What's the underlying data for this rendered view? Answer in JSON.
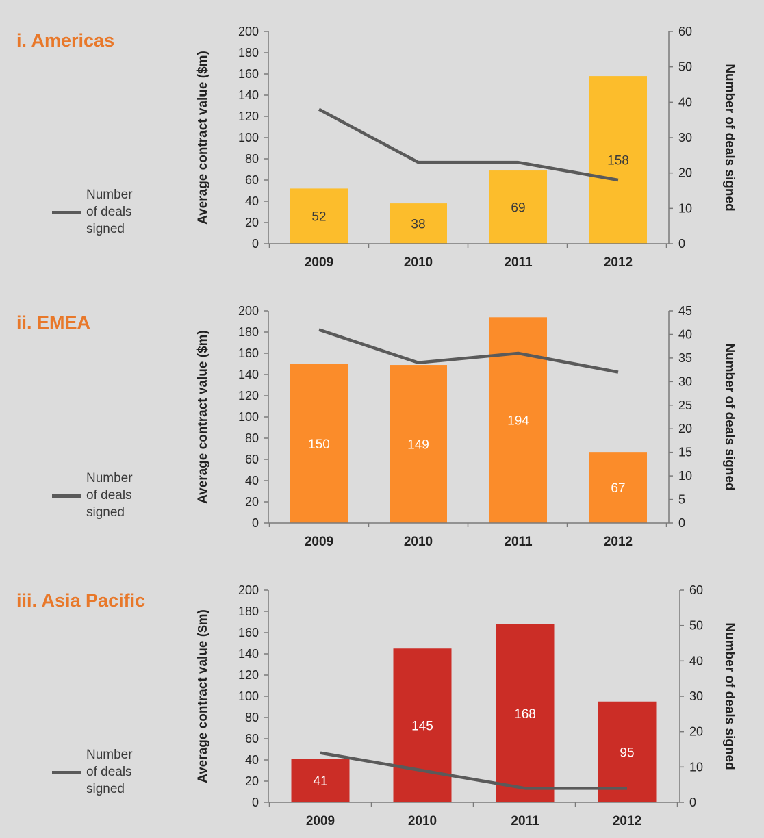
{
  "chart_data": [
    {
      "type": "bar",
      "title": "i. Americas",
      "categories": [
        "2009",
        "2010",
        "2011",
        "2012"
      ],
      "series": [
        {
          "values": [
            52,
            38,
            69,
            158
          ],
          "axis": "left",
          "kind": "bar",
          "color": "#fcbd2c"
        },
        {
          "name": "Number of deals signed",
          "values": [
            38,
            23,
            23,
            18
          ],
          "axis": "right",
          "kind": "line",
          "color": "#5a5a5a"
        }
      ],
      "data_labels": [
        "52",
        "38",
        "69",
        "158"
      ],
      "data_label_color": "#3a3a3a",
      "ylabel": "Average contract value ($m)",
      "ylim": [
        0,
        200
      ],
      "yticks": [
        0,
        20,
        40,
        60,
        80,
        100,
        120,
        140,
        160,
        180,
        200
      ],
      "y2label": "Number of deals signed",
      "y2lim": [
        0,
        60
      ],
      "y2ticks": [
        0,
        10,
        20,
        30,
        40,
        50,
        60
      ],
      "legend": "left",
      "grid": false
    },
    {
      "type": "bar",
      "title": "ii. EMEA",
      "categories": [
        "2009",
        "2010",
        "2011",
        "2012"
      ],
      "series": [
        {
          "values": [
            150,
            149,
            194,
            67
          ],
          "axis": "left",
          "kind": "bar",
          "color": "#fb8c2a"
        },
        {
          "name": "Number of deals signed",
          "values": [
            41,
            34,
            36,
            32
          ],
          "axis": "right",
          "kind": "line",
          "color": "#5a5a5a"
        }
      ],
      "data_labels": [
        "150",
        "149",
        "194",
        "67"
      ],
      "data_label_color": "#ffffff",
      "ylabel": "Average contract value ($m)",
      "ylim": [
        0,
        200
      ],
      "yticks": [
        0,
        20,
        40,
        60,
        80,
        100,
        120,
        140,
        160,
        180,
        200
      ],
      "y2label": "Number of deals signed",
      "y2lim": [
        0,
        45
      ],
      "y2ticks": [
        0,
        5,
        10,
        15,
        20,
        25,
        30,
        35,
        40,
        45
      ],
      "legend": "left",
      "grid": false
    },
    {
      "type": "bar",
      "title": "iii. Asia Pacific",
      "categories": [
        "2009",
        "2010",
        "2011",
        "2012"
      ],
      "series": [
        {
          "values": [
            41,
            145,
            168,
            95
          ],
          "axis": "left",
          "kind": "bar",
          "color": "#cb2d26"
        },
        {
          "name": "Number of deals signed",
          "values": [
            14,
            9,
            4,
            4
          ],
          "axis": "right",
          "kind": "line",
          "color": "#5a5a5a"
        }
      ],
      "data_labels": [
        "41",
        "145",
        "168",
        "95"
      ],
      "data_label_color": "#ffffff",
      "ylabel": "Average contract value ($m)",
      "ylim": [
        0,
        200
      ],
      "yticks": [
        0,
        20,
        40,
        60,
        80,
        100,
        120,
        140,
        160,
        180,
        200
      ],
      "y2label": "Number of deals signed",
      "y2lim": [
        0,
        60
      ],
      "y2ticks": [
        0,
        10,
        20,
        30,
        40,
        50,
        60
      ],
      "legend": "left",
      "grid": false
    }
  ],
  "legend_label_lines": [
    "Number",
    "of deals",
    "signed"
  ],
  "colors": {
    "title": "#e8782a",
    "axis": "#7a7a7a",
    "tick_text": "#222222",
    "line": "#5a5a5a"
  }
}
